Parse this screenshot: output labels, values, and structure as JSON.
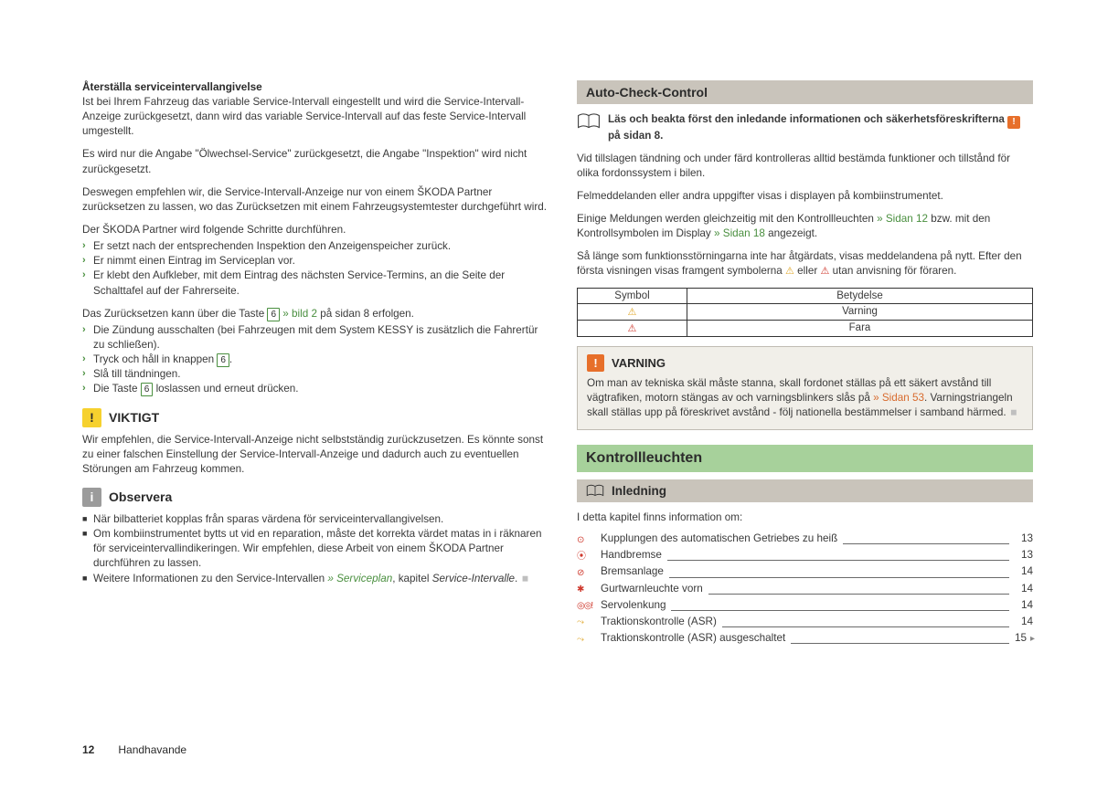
{
  "colors": {
    "text": "#3a3a3a",
    "green": "#4a8f3f",
    "orange": "#d86b2e",
    "badgeOrange": "#e76f2a",
    "yellow": "#f6d12e",
    "greyIcon": "#9b9b9b",
    "greyBar": "#c9c4bb",
    "greenBar": "#a7d19b",
    "warnBg": "#f1efe9",
    "warnBorder": "#c0bcb3",
    "triYellow": "#e0a72a",
    "triRed": "#cf3a2e"
  },
  "left": {
    "h1": "Återställa serviceintervallangivelse",
    "p1": "Ist bei Ihrem Fahrzeug das variable Service-Intervall eingestellt und wird die Service-Intervall-Anzeige zurückgesetzt, dann wird das variable Service-Intervall auf das feste Service-Intervall umgestellt.",
    "p2": "Es wird nur die Angabe \"Ölwechsel-Service\" zurückgesetzt, die Angabe \"Inspektion\" wird nicht zurückgesetzt.",
    "p3": "Deswegen empfehlen wir, die Service-Intervall-Anzeige nur von einem ŠKODA Partner zurücksetzen zu lassen, wo das Zurücksetzen mit einem Fahrzeugsystemtester durchgeführt wird.",
    "p4": "Der ŠKODA Partner wird folgende Schritte durchführen.",
    "list1": [
      "Er setzt nach der entsprechenden Inspektion den Anzeigenspeicher zurück.",
      "Er nimmt einen Eintrag im Serviceplan vor.",
      "Er klebt den Aufkleber, mit dem Eintrag des nächsten Service-Termins, an die Seite der Schalttafel auf der Fahrerseite."
    ],
    "p5_a": "Das Zurücksetzen kann über die Taste ",
    "p5_key": "6",
    "p5_b": " » bild 2",
    "p5_c": " på sidan 8 erfolgen.",
    "list2": {
      "i0": "Die Zündung ausschalten (bei Fahrzeugen mit dem System KESSY is zusätzlich die Fahrertür zu schließen).",
      "i1_a": "Tryck och håll in knappen ",
      "i1_key": "6",
      "i1_b": ".",
      "i2": "Slå till tändningen.",
      "i3_a": "Die Taste ",
      "i3_key": "6",
      "i3_b": " loslassen und erneut drücken."
    },
    "viktigt": {
      "title": "VIKTIGT",
      "body": "Wir empfehlen, die Service-Intervall-Anzeige nicht selbstständig zurückzusetzen. Es könnte sonst zu einer falschen Einstellung der Service-Intervall-Anzeige und dadurch auch zu eventuellen Störungen am Fahrzeug kommen."
    },
    "observera": {
      "title": "Observera",
      "i0": "När bilbatteriet kopplas från sparas värdena för serviceintervallangivelsen.",
      "i1": "Om kombiinstrumentet bytts ut vid en reparation, måste det korrekta värdet matas in i räknaren för serviceintervallindikeringen. Wir empfehlen, diese Arbeit von einem ŠKODA Partner durchführen zu lassen.",
      "i2_a": "Weitere Informationen zu den Service-Intervallen ",
      "i2_b": "» Serviceplan",
      "i2_c": ", kapitel ",
      "i2_d": "Service-Intervalle",
      "i2_e": "."
    }
  },
  "right": {
    "bar1": "Auto-Check-Control",
    "book": {
      "a": "Läs och beakta först den inledande informationen och säkerhetsföreskrifterna ",
      "b": " på sidan 8."
    },
    "p1": "Vid tillslagen tändning och under färd kontrolleras alltid bestämda funktioner och tillstånd för olika fordonssystem i bilen.",
    "p2": "Felmeddelanden eller andra uppgifter visas i displayen på kombiinstrumentet.",
    "p3_a": "Einige Meldungen werden gleichzeitig mit den Kontrollleuchten ",
    "p3_b": "» Sidan 12",
    "p3_c": " bzw. mit den Kontrollsymbolen im Display ",
    "p3_d": "» Sidan 18",
    "p3_e": " angezeigt.",
    "p4_a": "Så länge som funktionsstörningarna inte har åtgärdats, visas meddelandena på nytt. Efter den första visningen visas framgent symbolerna ",
    "p4_b": " eller ",
    "p4_c": " utan anvisning för föraren.",
    "table": {
      "h1": "Symbol",
      "h2": "Betydelse",
      "r1": "Varning",
      "r2": "Fara"
    },
    "warn": {
      "title": "VARNING",
      "a": "Om man av tekniska skäl måste stanna, skall fordonet ställas på ett säkert avstånd till vägtrafiken, motorn stängas av och varningsblinkers slås på ",
      "b": "» Sidan 53",
      "c": ". Varningstriangeln skall ställas upp på föreskrivet avstånd - följ nationella bestämmelser i samband härmed."
    },
    "greenbar": "Kontrollleuchten",
    "bar2": "Inledning",
    "tocIntro": "I detta kapitel finns information om:",
    "toc": [
      {
        "icon": "⊙",
        "cls": "",
        "label": "Kupplungen des automatischen Getriebes zu heiß",
        "pg": "13"
      },
      {
        "icon": "⦿",
        "cls": "",
        "label": "Handbremse",
        "pg": "13"
      },
      {
        "icon": "⊘",
        "cls": "",
        "label": "Bremsanlage",
        "pg": "14"
      },
      {
        "icon": "✱",
        "cls": "",
        "label": "Gurtwarnleuchte vorn",
        "pg": "14"
      },
      {
        "icon": "◎◎!",
        "cls": "double",
        "label": "Servolenkung",
        "pg": "14"
      },
      {
        "icon": "⤳",
        "cls": "y",
        "label": "Traktionskontrolle (ASR)",
        "pg": "14"
      },
      {
        "icon": "⤳",
        "cls": "y",
        "label": "Traktionskontrolle (ASR) ausgeschaltet",
        "pg": "15"
      }
    ]
  },
  "footer": {
    "page": "12",
    "section": "Handhavande"
  }
}
